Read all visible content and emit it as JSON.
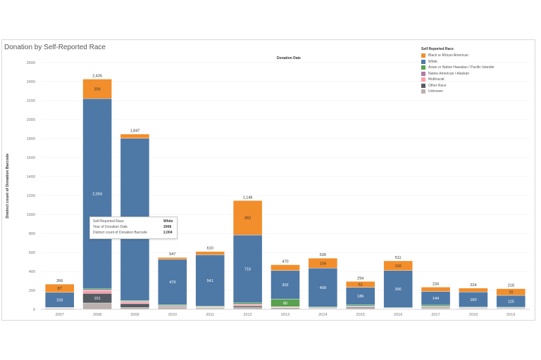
{
  "chart_data": {
    "type": "bar",
    "stacked": true,
    "title": "Donation by Self-Reported Race",
    "x_header": "Donation Date",
    "ylabel": "Distinct count of Donation Barcode",
    "xlabel": "",
    "ylim": [
      0,
      2600
    ],
    "yticks": [
      0,
      200,
      400,
      600,
      800,
      1000,
      1200,
      1400,
      1600,
      1800,
      2000,
      2200,
      2400,
      2600
    ],
    "grid": true,
    "legend_position": "top-right",
    "legend_title": "Self Reported Race",
    "categories": [
      "2007",
      "2008",
      "2009",
      "2010",
      "2011",
      "2012",
      "2013",
      "2014",
      "2015",
      "2016",
      "2017",
      "2018",
      "2019"
    ],
    "totals": [
      266,
      2426,
      1847,
      547,
      610,
      1146,
      470,
      539,
      294,
      511,
      234,
      224,
      218
    ],
    "series": [
      {
        "name": "Black or African American",
        "color": "#f28e2b",
        "values": [
          87,
          206,
          45,
          20,
          35,
          362,
          60,
          104,
          61,
          102,
          45,
          40,
          70
        ],
        "labels": [
          "87",
          "206",
          "",
          "",
          "",
          "362",
          "",
          "104",
          "61",
          "102",
          "",
          "",
          "70"
        ]
      },
      {
        "name": "White",
        "color": "#4e79a7",
        "values": [
          159,
          2004,
          1710,
          479,
          541,
          716,
          302,
          409,
          186,
          390,
          144,
          160,
          125
        ],
        "labels": [
          "159",
          "2,004",
          "",
          "479",
          "541",
          "716",
          "302",
          "409",
          "186",
          "390",
          "144",
          "160",
          "125"
        ]
      },
      {
        "name": "Asian or Native Hawaiian / Pacific Islander",
        "color": "#59a14f",
        "values": [
          2,
          10,
          8,
          10,
          8,
          15,
          80,
          8,
          12,
          5,
          15,
          5,
          5
        ],
        "labels": [
          "",
          "",
          "",
          "",
          "",
          "",
          "80",
          "",
          "",
          "",
          "",
          "",
          ""
        ]
      },
      {
        "name": "Native American / Alaskan",
        "color": "#b07aa1",
        "values": [
          1,
          8,
          4,
          2,
          2,
          3,
          4,
          2,
          2,
          2,
          2,
          2,
          2
        ],
        "labels": [
          "",
          "",
          "",
          "",
          "",
          "",
          "",
          "",
          "",
          "",
          "",
          "",
          ""
        ]
      },
      {
        "name": "Multiracial",
        "color": "#ff9da7",
        "values": [
          2,
          30,
          20,
          8,
          6,
          15,
          6,
          5,
          6,
          4,
          6,
          5,
          4
        ],
        "labels": [
          "",
          "",
          "",
          "",
          "",
          "",
          "",
          "",
          "",
          "",
          "",
          "",
          ""
        ]
      },
      {
        "name": "Other Race",
        "color": "#555b63",
        "values": [
          4,
          101,
          40,
          8,
          6,
          15,
          8,
          5,
          10,
          3,
          8,
          4,
          5
        ],
        "labels": [
          "",
          "101",
          "",
          "",
          "",
          "",
          "",
          "",
          "",
          "",
          "",
          "",
          ""
        ]
      },
      {
        "name": "Unknown",
        "color": "#bab0ac",
        "values": [
          11,
          67,
          20,
          20,
          12,
          20,
          10,
          6,
          17,
          5,
          14,
          8,
          7
        ],
        "labels": [
          "",
          "",
          "",
          "",
          "",
          "",
          "",
          "",
          "",
          "",
          "",
          "",
          ""
        ]
      }
    ]
  },
  "tooltip": {
    "rows": [
      {
        "key": "Self-Reported Race",
        "value": "White"
      },
      {
        "key": "Year of Donation Date",
        "value": "2008"
      },
      {
        "key": "Distinct count of Donation Barcode",
        "value": "2,004"
      }
    ]
  }
}
